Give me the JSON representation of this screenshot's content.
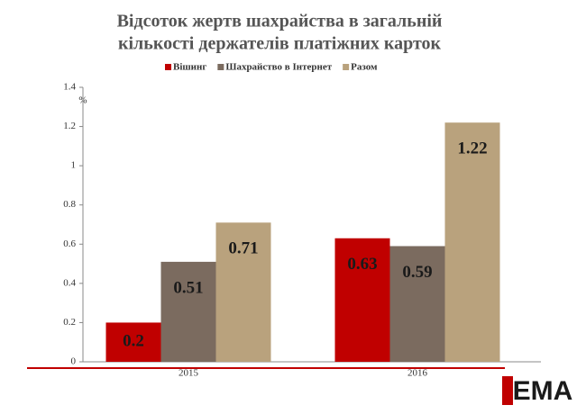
{
  "chart_data": {
    "type": "bar",
    "title": [
      "Відсоток жертв шахрайства в загальній",
      "кількості держателів платіжних карток"
    ],
    "y_label": "%",
    "categories": [
      "2015",
      "2016"
    ],
    "series": [
      {
        "name": "Вішинг",
        "color": "#c00000",
        "values": [
          0.2,
          0.63
        ]
      },
      {
        "name": "Шахрайство в Інтернет",
        "color": "#7b6b5f",
        "values": [
          0.51,
          0.59
        ]
      },
      {
        "name": "Разом",
        "color": "#b9a27d",
        "values": [
          0.71,
          1.22
        ]
      }
    ],
    "ylim": [
      0,
      1.4
    ],
    "yticks": [
      0,
      0.2,
      0.4,
      0.6,
      0.8,
      1,
      1.2,
      1.4
    ],
    "legend": "top",
    "logo": "EMA"
  }
}
